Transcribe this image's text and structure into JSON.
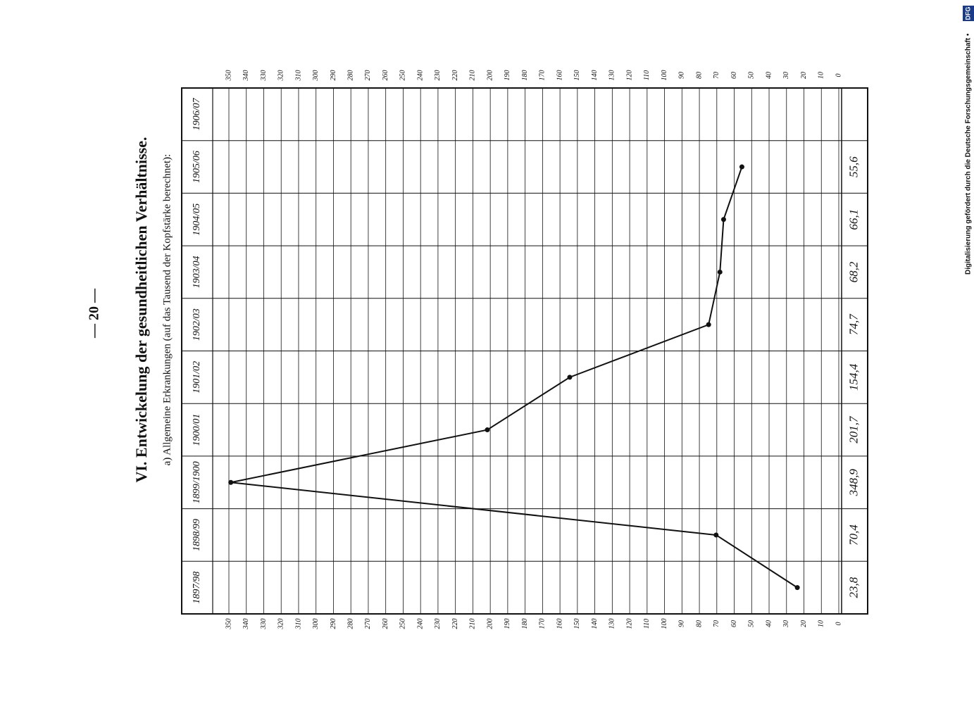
{
  "page_number": "— 20 —",
  "chart_data": {
    "type": "line",
    "title": "VI. Entwickelung der gesundheitlichen Verhältnisse.",
    "subtitle": "a) Allgemeine Erkrankungen (auf das Tausend der Kopfstärke berechnet):",
    "categories": [
      "1897/98",
      "1898/99",
      "1899/1900",
      "1900/01",
      "1901/02",
      "1902/03",
      "1903/04",
      "1904/05",
      "1905/06",
      "1906/07"
    ],
    "values": [
      23.8,
      70.4,
      348.9,
      201.7,
      154.4,
      74.7,
      68.2,
      66.1,
      55.6,
      null
    ],
    "value_labels": [
      "23,8",
      "70,4",
      "348,9",
      "201,7",
      "154,4",
      "74,7",
      "68,2",
      "66,1",
      "55,6",
      null
    ],
    "color": "#111111",
    "ylim": [
      0,
      350
    ],
    "yticks": [
      0,
      10,
      20,
      30,
      40,
      50,
      60,
      70,
      80,
      90,
      100,
      110,
      120,
      130,
      140,
      150,
      160,
      170,
      180,
      190,
      200,
      210,
      220,
      230,
      240,
      250,
      260,
      270,
      280,
      290,
      300,
      310,
      320,
      330,
      340,
      350
    ],
    "grid": true
  },
  "footer": {
    "credit": "Digitalisierung gefördert durch die Deutsche Forschungsgemeinschaft •",
    "logo": "DFG"
  }
}
